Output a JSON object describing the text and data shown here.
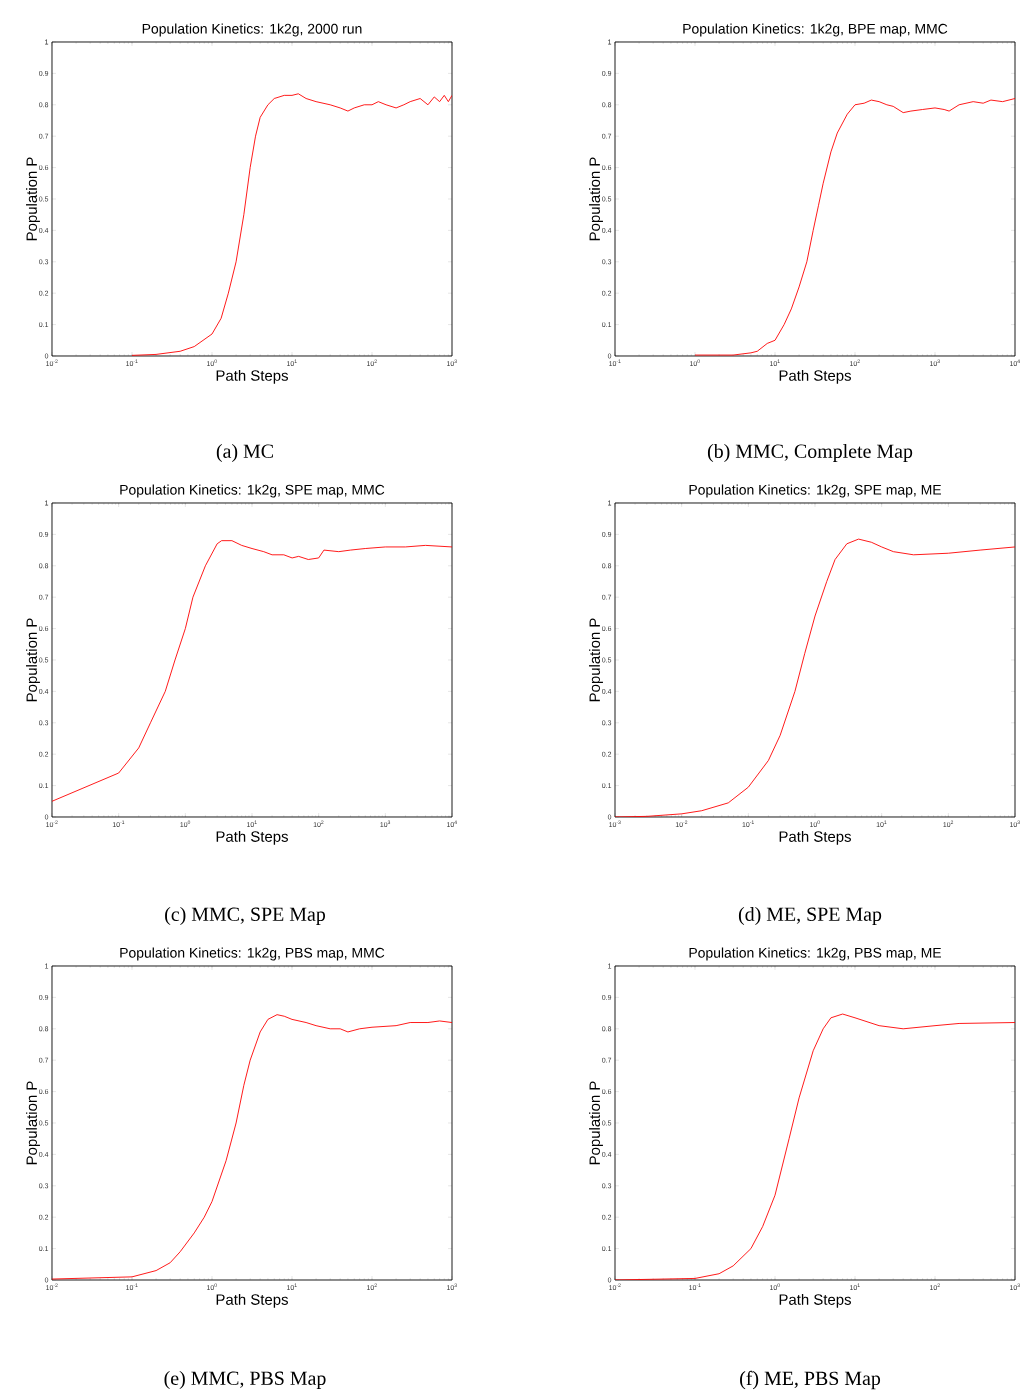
{
  "chart_data": [
    {
      "type": "line",
      "title": "Population Kinetics: 1k2g, 2000 run",
      "xlabel": "Path Steps",
      "ylabel": "Population P",
      "log": "x",
      "annotations": [
        "(a)  MC"
      ],
      "xlim": [
        0.01,
        1000
      ],
      "xticks": [
        {
          "value": 0.01,
          "label": "10$^{-2}$"
        },
        {
          "value": 0.1,
          "label": "10$^{-1}$"
        },
        {
          "value": 1,
          "label": "10$^{0}$"
        },
        {
          "value": 10,
          "label": "10$^{1}$"
        },
        {
          "value": 100,
          "label": "10$^{2}$"
        },
        {
          "value": 1000,
          "label": "10$^{3}$"
        }
      ],
      "ylim": [
        0,
        1
      ],
      "yticks": [
        0,
        0.1,
        0.2,
        0.3,
        0.4,
        0.5,
        0.6,
        0.7,
        0.8,
        0.9,
        1
      ],
      "x": [
        0.1,
        0.2,
        0.4,
        0.6,
        1,
        1.3,
        1.6,
        2,
        2.5,
        3,
        3.5,
        4,
        5,
        6,
        8,
        10,
        12,
        15,
        20,
        30,
        40,
        50,
        60,
        80,
        100,
        120,
        150,
        200,
        250,
        300,
        400,
        500,
        600,
        700,
        800,
        900,
        1000
      ],
      "series": [
        {
          "color": "#ff0000",
          "values": [
            0.002,
            0.005,
            0.015,
            0.03,
            0.07,
            0.12,
            0.2,
            0.3,
            0.45,
            0.6,
            0.7,
            0.76,
            0.8,
            0.82,
            0.83,
            0.83,
            0.835,
            0.82,
            0.81,
            0.8,
            0.79,
            0.78,
            0.79,
            0.8,
            0.8,
            0.81,
            0.8,
            0.79,
            0.8,
            0.81,
            0.82,
            0.8,
            0.825,
            0.81,
            0.83,
            0.81,
            0.83
          ]
        }
      ]
    },
    {
      "type": "line",
      "title": "Population Kinetics: 1k2g, BPE map, MMC",
      "xlabel": "Path Steps",
      "ylabel": "Population P",
      "log": "x",
      "annotations": [
        "(b)  MMC, Complete Map"
      ],
      "xlim": [
        0.1,
        10000
      ],
      "xticks": [
        {
          "value": 0.1,
          "label": "10$^{-1}$"
        },
        {
          "value": 1,
          "label": "10$^{0}$"
        },
        {
          "value": 10,
          "label": "10$^{1}$"
        },
        {
          "value": 100,
          "label": "10$^{2}$"
        },
        {
          "value": 1000,
          "label": "10$^{3}$"
        },
        {
          "value": 10000,
          "label": "10$^{4}$"
        }
      ],
      "ylim": [
        0,
        1
      ],
      "yticks": [
        0,
        0.1,
        0.2,
        0.3,
        0.4,
        0.5,
        0.6,
        0.7,
        0.8,
        0.9,
        1
      ],
      "x": [
        1,
        3,
        5,
        6,
        8,
        10,
        13,
        16,
        20,
        25,
        30,
        35,
        40,
        50,
        60,
        80,
        100,
        130,
        160,
        200,
        250,
        300,
        400,
        500,
        700,
        1000,
        1300,
        1500,
        2000,
        3000,
        4000,
        5000,
        7000,
        10000
      ],
      "series": [
        {
          "color": "#ff0000",
          "values": [
            0.003,
            0.003,
            0.01,
            0.015,
            0.04,
            0.05,
            0.1,
            0.15,
            0.22,
            0.3,
            0.4,
            0.48,
            0.55,
            0.65,
            0.71,
            0.77,
            0.8,
            0.805,
            0.815,
            0.81,
            0.8,
            0.795,
            0.775,
            0.78,
            0.785,
            0.79,
            0.785,
            0.78,
            0.8,
            0.81,
            0.805,
            0.815,
            0.81,
            0.82
          ]
        }
      ]
    },
    {
      "type": "line",
      "title": "Population Kinetics: 1k2g, SPE map, MMC",
      "xlabel": "Path Steps",
      "ylabel": "Population P",
      "log": "x",
      "annotations": [
        "(c)  MMC, SPE Map"
      ],
      "xlim": [
        0.01,
        10000
      ],
      "xticks": [
        {
          "value": 0.01,
          "label": "10$^{-2}$"
        },
        {
          "value": 0.1,
          "label": "10$^{-1}$"
        },
        {
          "value": 1,
          "label": "10$^{0}$"
        },
        {
          "value": 10,
          "label": "10$^{1}$"
        },
        {
          "value": 100,
          "label": "10$^{2}$"
        },
        {
          "value": 1000,
          "label": "10$^{3}$"
        },
        {
          "value": 10000,
          "label": "10$^{4}$"
        }
      ],
      "ylim": [
        0,
        1
      ],
      "yticks": [
        0,
        0.1,
        0.2,
        0.3,
        0.4,
        0.5,
        0.6,
        0.7,
        0.8,
        0.9,
        1
      ],
      "x": [
        0.01,
        0.1,
        0.2,
        0.3,
        0.5,
        0.7,
        1,
        1.3,
        2,
        3,
        3.5,
        5,
        7,
        10,
        15,
        20,
        30,
        40,
        50,
        70,
        100,
        120,
        200,
        300,
        500,
        1000,
        2000,
        4000,
        10000
      ],
      "series": [
        {
          "color": "#ff0000",
          "values": [
            0.05,
            0.14,
            0.22,
            0.3,
            0.4,
            0.5,
            0.6,
            0.7,
            0.8,
            0.87,
            0.88,
            0.88,
            0.865,
            0.855,
            0.845,
            0.835,
            0.835,
            0.825,
            0.83,
            0.82,
            0.825,
            0.85,
            0.845,
            0.85,
            0.855,
            0.86,
            0.86,
            0.865,
            0.86
          ]
        }
      ]
    },
    {
      "type": "line",
      "title": "Population Kinetics: 1k2g, SPE map, ME",
      "xlabel": "Path Steps",
      "ylabel": "Population P",
      "log": "x",
      "annotations": [
        "(d)  ME, SPE Map"
      ],
      "xlim": [
        0.001,
        1000
      ],
      "xticks": [
        {
          "value": 0.001,
          "label": "10$^{-3}$"
        },
        {
          "value": 0.01,
          "label": "10$^{-2}$"
        },
        {
          "value": 0.1,
          "label": "10$^{-1}$"
        },
        {
          "value": 1,
          "label": "10$^{0}$"
        },
        {
          "value": 10,
          "label": "10$^{1}$"
        },
        {
          "value": 100,
          "label": "10$^{2}$"
        },
        {
          "value": 1000,
          "label": "10$^{3}$"
        }
      ],
      "ylim": [
        0,
        1
      ],
      "yticks": [
        0,
        0.1,
        0.2,
        0.3,
        0.4,
        0.5,
        0.6,
        0.7,
        0.8,
        0.9,
        1
      ],
      "x": [
        0.001,
        0.003,
        0.01,
        0.02,
        0.05,
        0.1,
        0.2,
        0.3,
        0.5,
        0.7,
        1,
        1.5,
        2,
        3,
        4.5,
        7,
        10,
        15,
        30,
        100,
        300,
        1000
      ],
      "series": [
        {
          "color": "#ff0000",
          "values": [
            0,
            0.002,
            0.01,
            0.02,
            0.045,
            0.095,
            0.18,
            0.26,
            0.4,
            0.52,
            0.64,
            0.75,
            0.82,
            0.87,
            0.885,
            0.875,
            0.86,
            0.845,
            0.835,
            0.84,
            0.85,
            0.86
          ]
        }
      ]
    },
    {
      "type": "line",
      "title": "Population Kinetics: 1k2g, PBS map, MMC",
      "xlabel": "Path Steps",
      "ylabel": "Population P",
      "log": "x",
      "annotations": [
        "(e)  MMC, PBS Map"
      ],
      "xlim": [
        0.01,
        1000
      ],
      "xticks": [
        {
          "value": 0.01,
          "label": "10$^{-2}$"
        },
        {
          "value": 0.1,
          "label": "10$^{-1}$"
        },
        {
          "value": 1,
          "label": "10$^{0}$"
        },
        {
          "value": 10,
          "label": "10$^{1}$"
        },
        {
          "value": 100,
          "label": "10$^{2}$"
        },
        {
          "value": 1000,
          "label": "10$^{3}$"
        }
      ],
      "ylim": [
        0,
        1
      ],
      "yticks": [
        0,
        0.1,
        0.2,
        0.3,
        0.4,
        0.5,
        0.6,
        0.7,
        0.8,
        0.9,
        1
      ],
      "x": [
        0.01,
        0.1,
        0.2,
        0.3,
        0.4,
        0.6,
        0.8,
        1,
        1.5,
        2,
        2.5,
        3,
        4,
        5,
        6.5,
        8,
        10,
        15,
        20,
        30,
        40,
        50,
        70,
        100,
        200,
        300,
        500,
        700,
        1000
      ],
      "series": [
        {
          "color": "#ff0000",
          "values": [
            0.003,
            0.01,
            0.03,
            0.055,
            0.09,
            0.15,
            0.2,
            0.25,
            0.38,
            0.5,
            0.62,
            0.7,
            0.79,
            0.83,
            0.845,
            0.84,
            0.83,
            0.82,
            0.81,
            0.8,
            0.8,
            0.79,
            0.8,
            0.805,
            0.81,
            0.82,
            0.82,
            0.825,
            0.82
          ]
        }
      ]
    },
    {
      "type": "line",
      "title": "Population Kinetics: 1k2g, PBS map, ME",
      "xlabel": "Path Steps",
      "ylabel": "Population P",
      "log": "x",
      "annotations": [
        "(f)  ME, PBS Map"
      ],
      "xlim": [
        0.01,
        1000
      ],
      "xticks": [
        {
          "value": 0.01,
          "label": "10$^{-2}$"
        },
        {
          "value": 0.1,
          "label": "10$^{-1}$"
        },
        {
          "value": 1,
          "label": "10$^{0}$"
        },
        {
          "value": 10,
          "label": "10$^{1}$"
        },
        {
          "value": 100,
          "label": "10$^{2}$"
        },
        {
          "value": 1000,
          "label": "10$^{3}$"
        }
      ],
      "ylim": [
        0,
        1
      ],
      "yticks": [
        0,
        0.1,
        0.2,
        0.3,
        0.4,
        0.5,
        0.6,
        0.7,
        0.8,
        0.9,
        1
      ],
      "x": [
        0.01,
        0.1,
        0.2,
        0.3,
        0.5,
        0.7,
        1,
        1.5,
        2,
        3,
        4,
        5,
        7,
        10,
        20,
        40,
        100,
        200,
        1000
      ],
      "series": [
        {
          "color": "#ff0000",
          "values": [
            0,
            0.005,
            0.02,
            0.045,
            0.1,
            0.17,
            0.27,
            0.45,
            0.58,
            0.73,
            0.8,
            0.835,
            0.847,
            0.835,
            0.81,
            0.8,
            0.81,
            0.817,
            0.82
          ]
        }
      ]
    }
  ]
}
